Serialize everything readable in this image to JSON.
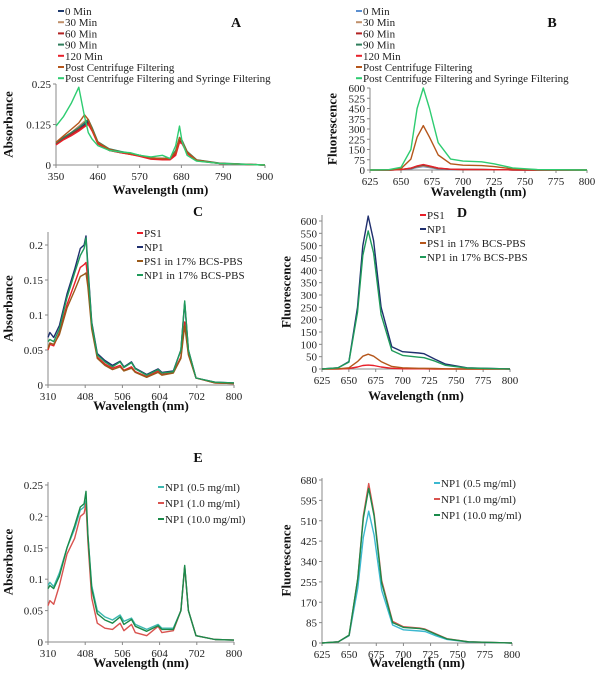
{
  "chart_data": [
    {
      "id": "A",
      "type": "line",
      "title": "A",
      "xlabel": "Wavelength (nm)",
      "ylabel": "Absorbance",
      "xlim": [
        350,
        900
      ],
      "ylim": [
        0,
        0.25
      ],
      "xticks": [
        350,
        460,
        570,
        680,
        790,
        900
      ],
      "yticks": [
        0,
        0.125,
        0.25
      ],
      "legend_position": "top-left",
      "x": [
        350,
        370,
        390,
        410,
        425,
        435,
        445,
        460,
        490,
        520,
        545,
        570,
        600,
        630,
        650,
        665,
        675,
        682,
        695,
        720,
        780,
        900
      ],
      "series": [
        {
          "name": "0 Min",
          "color": "#1f3a6e",
          "y": [
            0.065,
            0.08,
            0.095,
            0.11,
            0.125,
            0.135,
            0.11,
            0.07,
            0.048,
            0.04,
            0.035,
            0.03,
            0.02,
            0.02,
            0.02,
            0.04,
            0.075,
            0.07,
            0.04,
            0.015,
            0.005,
            0
          ]
        },
        {
          "name": "30 Min",
          "color": "#c0906a",
          "y": [
            0.068,
            0.085,
            0.1,
            0.12,
            0.135,
            0.14,
            0.11,
            0.07,
            0.048,
            0.04,
            0.036,
            0.03,
            0.022,
            0.02,
            0.02,
            0.04,
            0.08,
            0.072,
            0.04,
            0.015,
            0.005,
            0
          ]
        },
        {
          "name": "60 Min",
          "color": "#b22222",
          "y": [
            0.065,
            0.08,
            0.095,
            0.11,
            0.12,
            0.13,
            0.11,
            0.068,
            0.045,
            0.038,
            0.033,
            0.028,
            0.02,
            0.018,
            0.018,
            0.035,
            0.075,
            0.068,
            0.038,
            0.014,
            0.005,
            0
          ]
        },
        {
          "name": "90 Min",
          "color": "#2e7d5b",
          "y": [
            0.068,
            0.085,
            0.1,
            0.115,
            0.13,
            0.14,
            0.115,
            0.072,
            0.05,
            0.042,
            0.036,
            0.03,
            0.022,
            0.02,
            0.02,
            0.045,
            0.085,
            0.075,
            0.042,
            0.016,
            0.006,
            0
          ]
        },
        {
          "name": "120 Min",
          "color": "#e8202a",
          "y": [
            0.062,
            0.078,
            0.09,
            0.105,
            0.118,
            0.125,
            0.105,
            0.065,
            0.045,
            0.038,
            0.033,
            0.027,
            0.018,
            0.016,
            0.016,
            0.03,
            0.07,
            0.065,
            0.036,
            0.013,
            0.005,
            0
          ]
        },
        {
          "name": "Post Centrifuge Filtering",
          "color": "#b5561b",
          "y": [
            0.07,
            0.09,
            0.11,
            0.13,
            0.155,
            0.14,
            0.11,
            0.07,
            0.048,
            0.04,
            0.035,
            0.03,
            0.022,
            0.02,
            0.02,
            0.04,
            0.085,
            0.072,
            0.04,
            0.015,
            0.005,
            0
          ]
        },
        {
          "name": "Post Centrifuge Filtering and Syringe Filtering",
          "color": "#2ecc71",
          "y": [
            0.12,
            0.15,
            0.19,
            0.24,
            0.15,
            0.1,
            0.08,
            0.06,
            0.045,
            0.04,
            0.038,
            0.03,
            0.025,
            0.03,
            0.02,
            0.06,
            0.12,
            0.07,
            0.03,
            0.012,
            0.005,
            0
          ]
        }
      ]
    },
    {
      "id": "B",
      "type": "line",
      "title": "B",
      "xlabel": "Wavelength (nm)",
      "ylabel": "Fluorescence",
      "xlim": [
        625,
        800
      ],
      "ylim": [
        0,
        600
      ],
      "xticks": [
        625,
        650,
        675,
        700,
        725,
        750,
        775,
        800
      ],
      "yticks": [
        0,
        75,
        150,
        225,
        300,
        375,
        450,
        525,
        600
      ],
      "legend_position": "top-left",
      "x": [
        625,
        640,
        650,
        658,
        663,
        668,
        673,
        680,
        690,
        700,
        715,
        725,
        740,
        760,
        800
      ],
      "series": [
        {
          "name": "0 Min",
          "color": "#5b8fd0",
          "y": [
            0,
            0,
            2,
            8,
            18,
            25,
            18,
            8,
            4,
            3,
            3,
            2,
            1,
            0,
            0
          ]
        },
        {
          "name": "30 Min",
          "color": "#c0906a",
          "y": [
            0,
            0,
            2,
            10,
            22,
            30,
            22,
            10,
            5,
            3,
            3,
            2,
            1,
            0,
            0
          ]
        },
        {
          "name": "60 Min",
          "color": "#b22222",
          "y": [
            0,
            0,
            3,
            12,
            26,
            35,
            26,
            12,
            5,
            3,
            3,
            2,
            1,
            0,
            0
          ]
        },
        {
          "name": "90 Min",
          "color": "#2e7d5b",
          "y": [
            0,
            0,
            3,
            13,
            28,
            38,
            28,
            13,
            5,
            4,
            3,
            2,
            1,
            0,
            0
          ]
        },
        {
          "name": "120 Min",
          "color": "#e8202a",
          "y": [
            0,
            0,
            3,
            14,
            30,
            40,
            30,
            14,
            6,
            4,
            3,
            2,
            1,
            0,
            0
          ]
        },
        {
          "name": "Post Centrifuge Filtering",
          "color": "#b5561b",
          "y": [
            0,
            1,
            10,
            80,
            240,
            325,
            240,
            110,
            45,
            35,
            32,
            25,
            8,
            2,
            0
          ]
        },
        {
          "name": "Post Centrifuge Filtering and Syringe Filtering",
          "color": "#2ecc71",
          "y": [
            0,
            2,
            20,
            150,
            450,
            600,
            450,
            200,
            80,
            65,
            60,
            45,
            15,
            3,
            0
          ]
        }
      ]
    },
    {
      "id": "C",
      "type": "line",
      "title": "C",
      "xlabel": "Wavelength (nm)",
      "ylabel": "Absorbance",
      "xlim": [
        310,
        800
      ],
      "ylim": [
        0,
        0.2
      ],
      "xticks": [
        310,
        408,
        506,
        604,
        702,
        800
      ],
      "yticks": [
        0,
        0.05,
        0.1,
        0.15,
        0.2
      ],
      "legend_position": "top-right",
      "x": [
        310,
        315,
        325,
        340,
        360,
        380,
        395,
        405,
        410,
        415,
        425,
        440,
        460,
        480,
        500,
        510,
        530,
        540,
        570,
        600,
        610,
        640,
        660,
        670,
        680,
        700,
        750,
        800
      ],
      "series": [
        {
          "name": "PS1",
          "color": "#e8202a",
          "y": [
            0.05,
            0.058,
            0.056,
            0.075,
            0.115,
            0.145,
            0.168,
            0.172,
            0.175,
            0.15,
            0.085,
            0.04,
            0.03,
            0.024,
            0.028,
            0.021,
            0.026,
            0.019,
            0.012,
            0.02,
            0.015,
            0.018,
            0.04,
            0.09,
            0.045,
            0.01,
            0.003,
            0.002
          ]
        },
        {
          "name": "NP1",
          "color": "#1f2f6e",
          "y": [
            0.068,
            0.075,
            0.068,
            0.085,
            0.13,
            0.165,
            0.195,
            0.2,
            0.213,
            0.17,
            0.09,
            0.045,
            0.035,
            0.028,
            0.034,
            0.026,
            0.033,
            0.024,
            0.015,
            0.023,
            0.018,
            0.02,
            0.05,
            0.118,
            0.05,
            0.01,
            0.004,
            0.003
          ]
        },
        {
          "name": "PS1 in 17% BCS-PBS",
          "color": "#9a5a1a",
          "y": [
            0.052,
            0.06,
            0.058,
            0.072,
            0.11,
            0.135,
            0.155,
            0.158,
            0.16,
            0.14,
            0.08,
            0.038,
            0.028,
            0.022,
            0.026,
            0.02,
            0.024,
            0.018,
            0.011,
            0.018,
            0.014,
            0.017,
            0.038,
            0.085,
            0.043,
            0.01,
            0.003,
            0.002
          ]
        },
        {
          "name": "NP1 in 17% BCS-PBS",
          "color": "#1f9a5a",
          "y": [
            0.062,
            0.065,
            0.062,
            0.08,
            0.125,
            0.16,
            0.185,
            0.195,
            0.21,
            0.165,
            0.088,
            0.043,
            0.033,
            0.026,
            0.033,
            0.025,
            0.032,
            0.023,
            0.014,
            0.022,
            0.017,
            0.019,
            0.05,
            0.12,
            0.05,
            0.01,
            0.004,
            0.003
          ]
        }
      ]
    },
    {
      "id": "D",
      "type": "line",
      "title": "D",
      "xlabel": "Wavelength (nm)",
      "ylabel": "Fluorescence",
      "xlim": [
        625,
        800
      ],
      "ylim": [
        0,
        600
      ],
      "xticks": [
        625,
        650,
        675,
        700,
        725,
        750,
        775,
        800
      ],
      "yticks": [
        0,
        50,
        100,
        150,
        200,
        250,
        300,
        350,
        400,
        450,
        500,
        550,
        600
      ],
      "legend_position": "top-right",
      "x": [
        625,
        640,
        650,
        658,
        663,
        668,
        673,
        680,
        690,
        700,
        715,
        720,
        730,
        740,
        760,
        800
      ],
      "series": [
        {
          "name": "PS1",
          "color": "#e8202a",
          "y": [
            0,
            0,
            2,
            8,
            14,
            16,
            14,
            8,
            3,
            1,
            1,
            1,
            0,
            0,
            0,
            0
          ]
        },
        {
          "name": "NP1",
          "color": "#1f2f6e",
          "y": [
            0,
            5,
            30,
            250,
            500,
            620,
            520,
            250,
            90,
            70,
            65,
            62,
            40,
            20,
            5,
            0
          ]
        },
        {
          "name": "PS1 in 17% BCS-PBS",
          "color": "#b5561b",
          "y": [
            0,
            1,
            5,
            30,
            52,
            60,
            52,
            30,
            10,
            5,
            3,
            3,
            2,
            1,
            0,
            0
          ]
        },
        {
          "name": "NP1 in 17% BCS-PBS",
          "color": "#1f9a5a",
          "y": [
            0,
            5,
            28,
            230,
            460,
            560,
            470,
            220,
            75,
            55,
            48,
            46,
            32,
            15,
            4,
            0
          ]
        }
      ]
    },
    {
      "id": "E",
      "type": "line",
      "title": "E",
      "xlabel": "Wavelength (nm)",
      "ylabel": "Absorbance",
      "xlim": [
        310,
        800
      ],
      "ylim": [
        0,
        0.25
      ],
      "xticks": [
        310,
        408,
        506,
        604,
        702,
        800
      ],
      "yticks": [
        0,
        0.05,
        0.1,
        0.15,
        0.2,
        0.25
      ],
      "legend_position": "top-right",
      "x": [
        310,
        315,
        325,
        340,
        360,
        380,
        395,
        405,
        410,
        415,
        425,
        440,
        460,
        480,
        500,
        510,
        530,
        540,
        570,
        600,
        610,
        640,
        660,
        670,
        680,
        700,
        750,
        800
      ],
      "series": [
        {
          "name": "NP1 (0.5 mg/ml)",
          "color": "#3cb8b0",
          "y": [
            0.09,
            0.095,
            0.088,
            0.11,
            0.15,
            0.18,
            0.21,
            0.215,
            0.225,
            0.17,
            0.09,
            0.05,
            0.04,
            0.035,
            0.043,
            0.033,
            0.038,
            0.028,
            0.02,
            0.028,
            0.022,
            0.022,
            0.05,
            0.12,
            0.05,
            0.01,
            0.004,
            0.003
          ]
        },
        {
          "name": "NP1 (1.0 mg/ml)",
          "color": "#d9534f",
          "y": [
            0.058,
            0.066,
            0.06,
            0.09,
            0.14,
            0.165,
            0.2,
            0.205,
            0.22,
            0.16,
            0.07,
            0.03,
            0.022,
            0.02,
            0.03,
            0.018,
            0.028,
            0.015,
            0.01,
            0.025,
            0.015,
            0.018,
            0.05,
            0.12,
            0.05,
            0.01,
            0.004,
            0.003
          ]
        },
        {
          "name": "NP1 (10.0 mg/ml)",
          "color": "#1a8a4a",
          "y": [
            0.085,
            0.09,
            0.085,
            0.105,
            0.15,
            0.185,
            0.215,
            0.22,
            0.24,
            0.17,
            0.085,
            0.045,
            0.035,
            0.03,
            0.04,
            0.028,
            0.036,
            0.025,
            0.017,
            0.026,
            0.02,
            0.02,
            0.05,
            0.122,
            0.05,
            0.01,
            0.004,
            0.003
          ]
        }
      ]
    },
    {
      "id": "F",
      "type": "line",
      "title": "",
      "xlabel": "Wavelength (nm)",
      "ylabel": "Fluorescence",
      "xlim": [
        625,
        800
      ],
      "ylim": [
        0,
        680
      ],
      "xticks": [
        625,
        650,
        675,
        700,
        725,
        750,
        775,
        800
      ],
      "yticks": [
        0,
        85,
        170,
        255,
        340,
        425,
        510,
        595,
        680
      ],
      "legend_position": "top-right",
      "x": [
        625,
        640,
        650,
        658,
        663,
        668,
        673,
        680,
        690,
        700,
        715,
        720,
        730,
        740,
        760,
        800
      ],
      "series": [
        {
          "name": "NP1 (0.5 mg/ml)",
          "color": "#3cb8d0",
          "y": [
            0,
            5,
            30,
            230,
            440,
            550,
            450,
            220,
            75,
            55,
            50,
            48,
            30,
            15,
            4,
            0
          ]
        },
        {
          "name": "NP1 (1.0 mg/ml)",
          "color": "#d9534f",
          "y": [
            0,
            5,
            32,
            270,
            530,
            665,
            540,
            260,
            90,
            68,
            62,
            58,
            38,
            18,
            5,
            0
          ]
        },
        {
          "name": "NP1 (10.0 mg/ml)",
          "color": "#1a8a4a",
          "y": [
            0,
            5,
            33,
            270,
            520,
            645,
            530,
            250,
            85,
            65,
            60,
            56,
            36,
            17,
            5,
            0
          ]
        }
      ]
    }
  ]
}
